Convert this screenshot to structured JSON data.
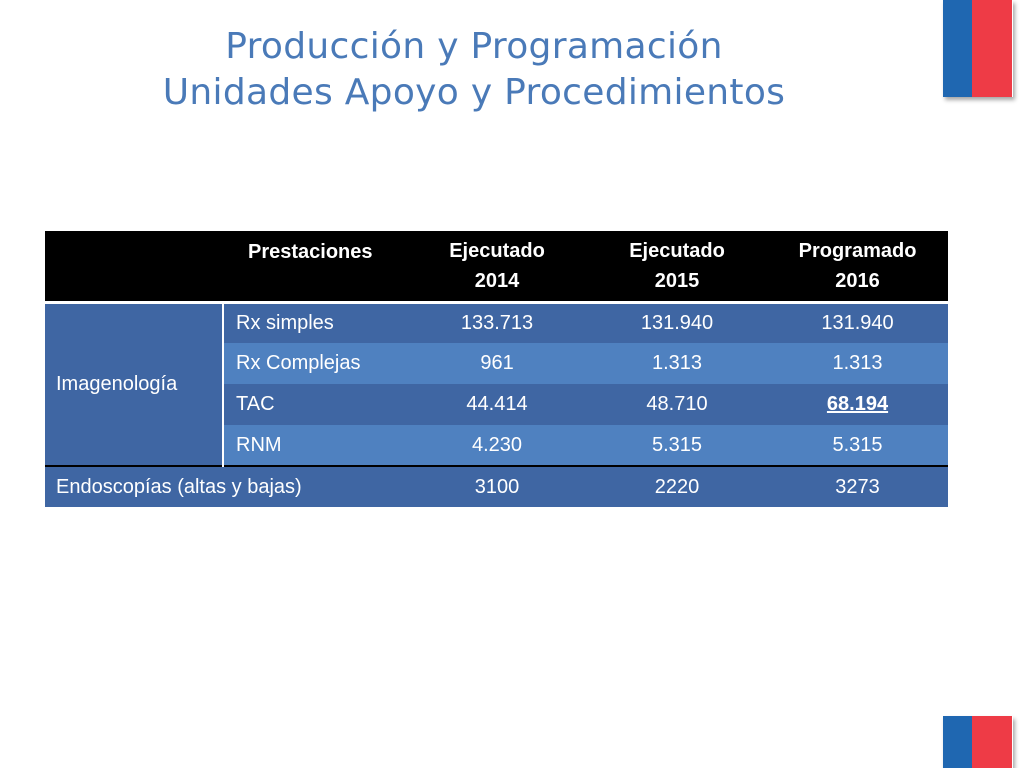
{
  "title": {
    "line1": "Producción y Programación",
    "line2": "Unidades Apoyo y Procedimientos"
  },
  "table": {
    "headers": {
      "prestaciones": "Prestaciones",
      "col1_line1": "Ejecutado",
      "col1_line2": "2014",
      "col2_line1": "Ejecutado",
      "col2_line2": "2015",
      "col3_line1": "Programado",
      "col3_line2": "2016"
    },
    "group": "Imagenología",
    "rows": [
      {
        "label": "Rx simples",
        "v2014": "133.713",
        "v2015": "131.940",
        "v2016": "131.940"
      },
      {
        "label": "Rx Complejas",
        "v2014": "961",
        "v2015": "1.313",
        "v2016": "1.313"
      },
      {
        "label": "TAC",
        "v2014": "44.414",
        "v2015": "48.710",
        "v2016": "68.194"
      },
      {
        "label": "RNM",
        "v2014": "4.230",
        "v2015": "5.315",
        "v2016": "5.315"
      }
    ],
    "endoscopias": {
      "label": "Endoscopías (altas y bajas)",
      "v2014": "3100",
      "v2015": "2220",
      "v2016": "3273"
    }
  },
  "colors": {
    "title": "#4a7ab8",
    "header_bg": "#000000",
    "row_dark": "#3f66a3",
    "row_light": "#4f81c0",
    "flag_blue": "#1f67b1",
    "flag_red": "#ee3b46"
  }
}
